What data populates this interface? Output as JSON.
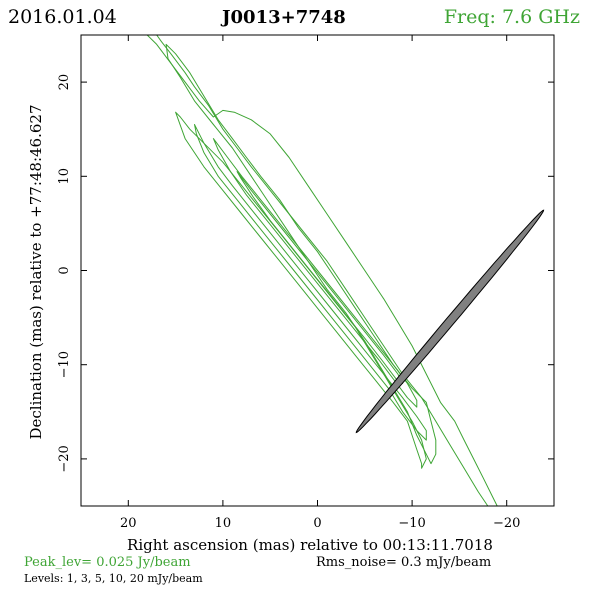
{
  "header": {
    "date": "2016.01.04",
    "source": "J0013+7748",
    "freq": "Freq:  7.6  GHz",
    "freq_color": "#3fa535"
  },
  "footer": {
    "peak": "Peak_lev=   0.025  Jy/beam",
    "rms": "Rms_noise=    0.3  mJy/beam",
    "levels": "Levels:    1,     3,     5,    10,    20  mJy/beam"
  },
  "chart_data": {
    "type": "contour",
    "xlabel": "Right ascension (mas) relative to 00:13:11.7018",
    "ylabel": "Declination (mas) relative to +77:48:46.627",
    "xlim": [
      25,
      -25
    ],
    "ylim": [
      -25,
      25
    ],
    "x_ticks": [
      20,
      10,
      0,
      -10,
      -20
    ],
    "y_ticks": [
      20,
      10,
      0,
      -10,
      -20
    ],
    "x_tick_labels": [
      "20",
      "10",
      "0",
      "−10",
      "−20"
    ],
    "y_tick_labels": [
      "20",
      "10",
      "0",
      "−10",
      "−20"
    ],
    "contour_color": "#3fa535",
    "beam_color": "#808080",
    "beam": {
      "x0": -14.0,
      "y0": -5.4,
      "major": 15.4,
      "minor": 0.45,
      "pa_deg": 40
    },
    "contours": [
      {
        "level": 1,
        "points": [
          [
            18,
            25
          ],
          [
            17,
            25
          ],
          [
            16.5,
            24.3
          ],
          [
            15.5,
            23
          ],
          [
            14,
            21
          ],
          [
            13,
            19.5
          ],
          [
            11.5,
            17.5
          ],
          [
            10,
            15
          ],
          [
            8.5,
            13
          ],
          [
            7,
            11
          ],
          [
            5,
            8.5
          ],
          [
            3,
            6
          ],
          [
            1,
            3.5
          ],
          [
            -1,
            1
          ],
          [
            -3,
            -2
          ],
          [
            -5,
            -5
          ],
          [
            -7,
            -8
          ],
          [
            -9,
            -11
          ],
          [
            -11,
            -13.5
          ],
          [
            -12.5,
            -16
          ],
          [
            -14,
            -18.5
          ],
          [
            -15.5,
            -21
          ],
          [
            -17,
            -23.5
          ],
          [
            -18,
            -25
          ],
          [
            -19,
            -25
          ],
          [
            -18.5,
            -24
          ],
          [
            -17.5,
            -22
          ],
          [
            -16.5,
            -20
          ],
          [
            -15.5,
            -18
          ],
          [
            -14.5,
            -16
          ],
          [
            -13,
            -14
          ],
          [
            -11.5,
            -11
          ],
          [
            -10,
            -8
          ],
          [
            -8.5,
            -5.5
          ],
          [
            -7,
            -3
          ],
          [
            -5,
            0
          ],
          [
            -3,
            3
          ],
          [
            -1,
            6
          ],
          [
            1,
            9
          ],
          [
            3,
            12
          ],
          [
            5,
            14.5
          ],
          [
            7,
            16
          ],
          [
            8.8,
            16.8
          ],
          [
            10,
            17
          ],
          [
            11,
            16.3
          ],
          [
            12.5,
            18
          ],
          [
            14,
            20
          ],
          [
            15.5,
            22
          ],
          [
            17,
            24
          ]
        ]
      },
      {
        "level": 3,
        "points": [
          [
            16,
            24
          ],
          [
            15,
            23
          ],
          [
            13.5,
            21
          ],
          [
            12,
            18.5
          ],
          [
            10.5,
            16
          ],
          [
            9,
            14
          ],
          [
            7.5,
            12
          ],
          [
            6,
            10
          ],
          [
            4,
            7.5
          ],
          [
            2,
            4.5
          ],
          [
            0,
            2
          ],
          [
            -2,
            -1
          ],
          [
            -4,
            -4
          ],
          [
            -6,
            -7
          ],
          [
            -8,
            -10
          ],
          [
            -10,
            -12.5
          ],
          [
            -11.5,
            -14
          ],
          [
            -12,
            -16
          ],
          [
            -12.5,
            -18
          ],
          [
            -12.5,
            -19.5
          ],
          [
            -12,
            -20.5
          ],
          [
            -11.5,
            -19.5
          ],
          [
            -10.5,
            -17.5
          ],
          [
            -9.5,
            -15
          ],
          [
            -8,
            -12.5
          ],
          [
            -6.5,
            -10
          ],
          [
            -5,
            -7.5
          ],
          [
            -3,
            -4.5
          ],
          [
            -1,
            -2
          ],
          [
            1,
            1
          ],
          [
            3,
            4
          ],
          [
            5,
            7
          ],
          [
            7,
            10
          ],
          [
            9,
            13
          ],
          [
            11,
            15.5
          ],
          [
            13,
            18
          ],
          [
            14.5,
            20.5
          ],
          [
            15.8,
            22.5
          ]
        ]
      },
      {
        "level": 3,
        "points": [
          [
            15,
            16.8
          ],
          [
            14,
            14
          ],
          [
            12,
            11
          ],
          [
            10,
            8.5
          ],
          [
            8,
            6
          ],
          [
            6,
            3.5
          ],
          [
            4,
            1
          ],
          [
            2,
            -1.5
          ],
          [
            0,
            -4
          ],
          [
            -2,
            -6.5
          ],
          [
            -4,
            -9
          ],
          [
            -6,
            -11.5
          ],
          [
            -8,
            -14
          ],
          [
            -9.5,
            -16
          ],
          [
            -10,
            -17.5
          ],
          [
            -10.5,
            -19
          ],
          [
            -11,
            -20.5
          ],
          [
            -11,
            -21
          ],
          [
            -11.5,
            -20
          ],
          [
            -11,
            -18
          ],
          [
            -10,
            -16
          ],
          [
            -8.5,
            -13.5
          ],
          [
            -7,
            -11
          ],
          [
            -5.5,
            -8.5
          ],
          [
            -4,
            -6
          ],
          [
            -2,
            -3.5
          ],
          [
            0,
            -1
          ],
          [
            2,
            1.5
          ],
          [
            4,
            4
          ],
          [
            6,
            6.5
          ],
          [
            8,
            9
          ],
          [
            10,
            11.5
          ],
          [
            12,
            13.5
          ],
          [
            13.5,
            15
          ],
          [
            14.5,
            16.3
          ]
        ]
      },
      {
        "level": 5,
        "points": [
          [
            13,
            15.5
          ],
          [
            12,
            13.5
          ],
          [
            10.5,
            11
          ],
          [
            9,
            9
          ],
          [
            7,
            6.5
          ],
          [
            5,
            4
          ],
          [
            3,
            1.5
          ],
          [
            1,
            -1
          ],
          [
            -1,
            -3.5
          ],
          [
            -3,
            -6
          ],
          [
            -5,
            -8.5
          ],
          [
            -7,
            -11
          ],
          [
            -9,
            -13.5
          ],
          [
            -10.5,
            -15.5
          ],
          [
            -11.5,
            -17
          ],
          [
            -11.5,
            -18
          ],
          [
            -10.5,
            -17
          ],
          [
            -9,
            -15
          ],
          [
            -7.5,
            -12.5
          ],
          [
            -5.5,
            -10
          ],
          [
            -3.5,
            -7.5
          ],
          [
            -1.5,
            -5
          ],
          [
            0.5,
            -2.5
          ],
          [
            2.5,
            0
          ],
          [
            4.5,
            2.5
          ],
          [
            6.5,
            5
          ],
          [
            8.5,
            7.5
          ],
          [
            10.5,
            10
          ],
          [
            12,
            12.5
          ],
          [
            12.8,
            14.5
          ]
        ]
      },
      {
        "level": 10,
        "points": [
          [
            11,
            14
          ],
          [
            9.5,
            12
          ],
          [
            8,
            10
          ],
          [
            6,
            7.5
          ],
          [
            4,
            5
          ],
          [
            2,
            2.5
          ],
          [
            0,
            0
          ],
          [
            -2,
            -2.5
          ],
          [
            -4,
            -5
          ],
          [
            -6,
            -7.5
          ],
          [
            -8,
            -10
          ],
          [
            -9.5,
            -12
          ],
          [
            -10.5,
            -13.8
          ],
          [
            -10.5,
            -14.5
          ],
          [
            -9.5,
            -13.5
          ],
          [
            -8,
            -11.5
          ],
          [
            -6.5,
            -9.5
          ],
          [
            -4.5,
            -7
          ],
          [
            -2.5,
            -4.5
          ],
          [
            -0.5,
            -2
          ],
          [
            1.5,
            0.5
          ],
          [
            3.5,
            3
          ],
          [
            5.5,
            5.5
          ],
          [
            7.5,
            8
          ],
          [
            9.2,
            10.5
          ],
          [
            10.5,
            12.8
          ]
        ]
      },
      {
        "level": 20,
        "points": [
          [
            8.5,
            10.5
          ],
          [
            7,
            8.5
          ],
          [
            5,
            6
          ],
          [
            3,
            3.5
          ],
          [
            1,
            1
          ],
          [
            -1,
            -1.5
          ],
          [
            -3,
            -4
          ],
          [
            -5,
            -6.5
          ],
          [
            -7,
            -9
          ],
          [
            -8.5,
            -11
          ],
          [
            -9,
            -12
          ],
          [
            -8.3,
            -11.5
          ],
          [
            -6.8,
            -9.5
          ],
          [
            -5,
            -7.2
          ],
          [
            -3,
            -4.7
          ],
          [
            -1,
            -2.2
          ],
          [
            1,
            0.3
          ],
          [
            3,
            2.8
          ],
          [
            5,
            5.3
          ],
          [
            6.8,
            7.8
          ],
          [
            8.1,
            9.8
          ]
        ]
      }
    ]
  }
}
